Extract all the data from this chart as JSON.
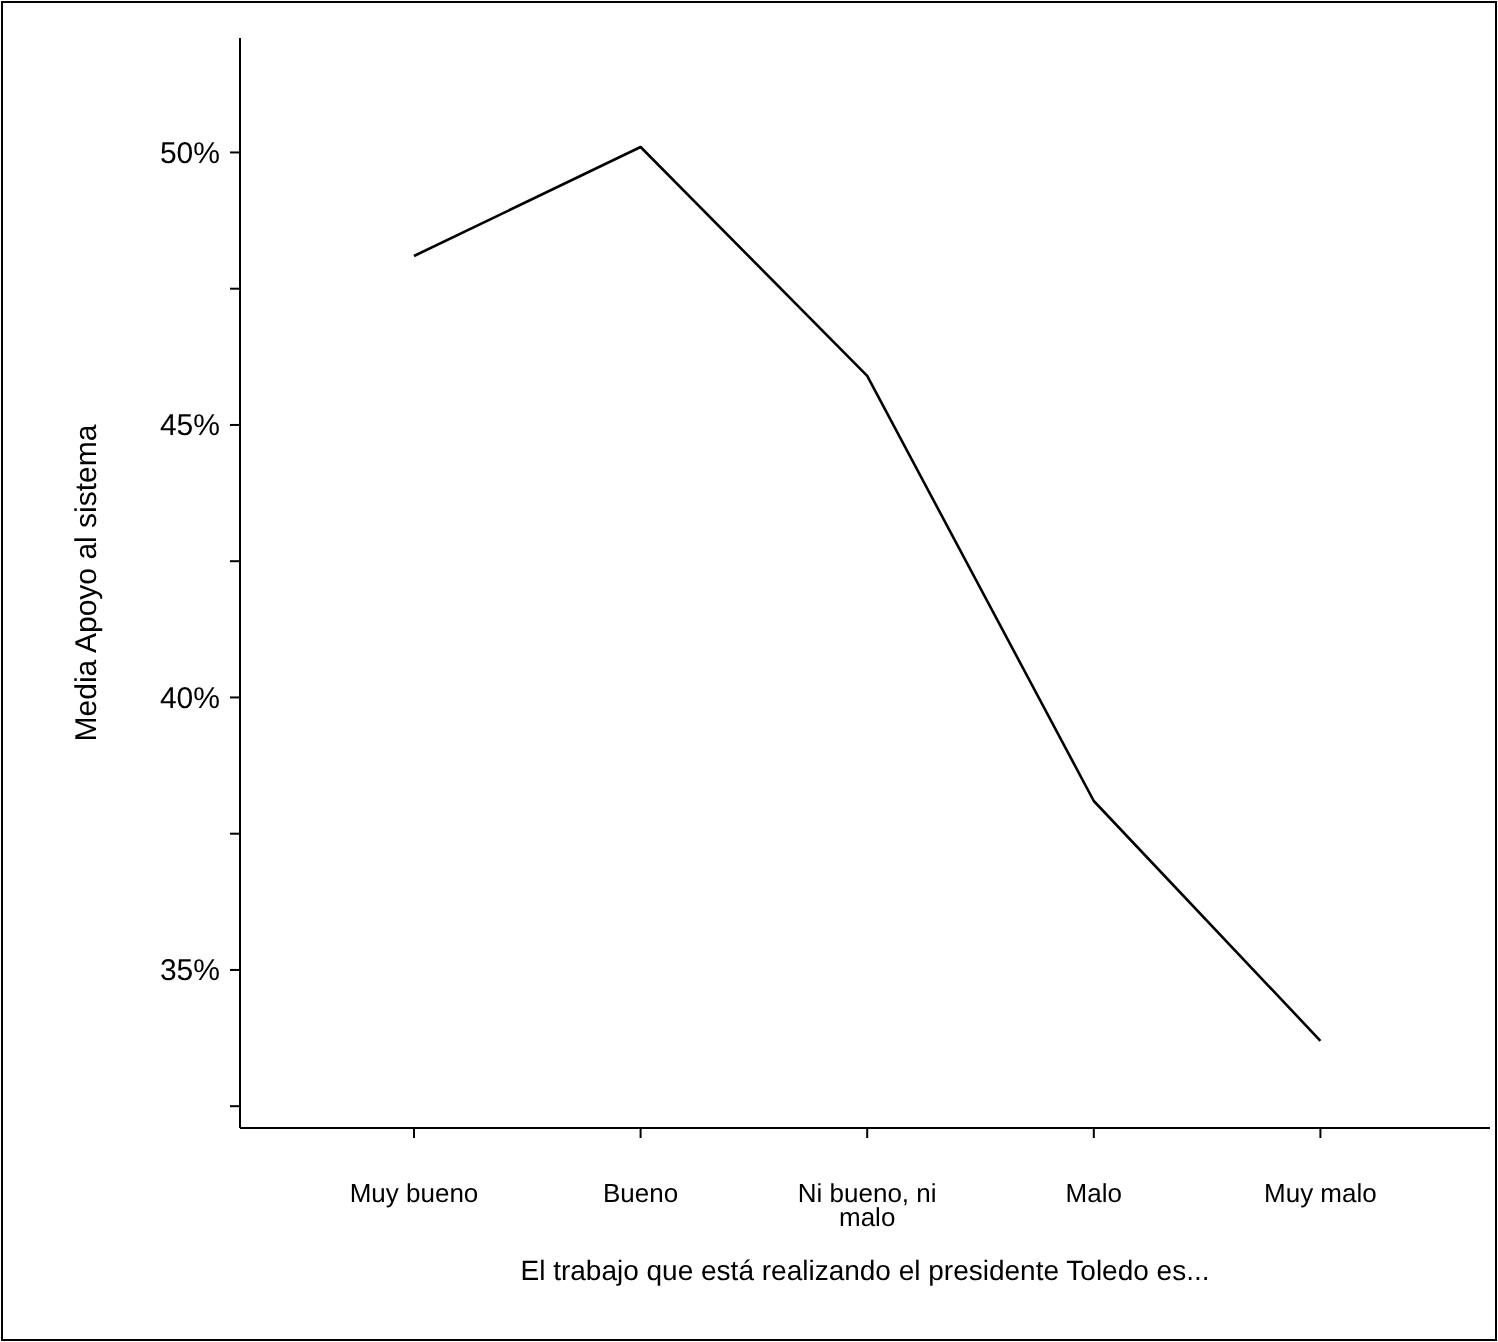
{
  "chart_data": {
    "type": "line",
    "xlabel": "El trabajo que está realizando el presidente Toledo es...",
    "ylabel": "Media Apoyo al sistema",
    "categories": [
      "Muy bueno",
      "Bueno",
      "Ni bueno, ni malo",
      "Malo",
      "Muy malo"
    ],
    "series": [
      {
        "color": "#000000",
        "values": [
          48.1,
          50.1,
          45.9,
          38.1,
          33.7
        ]
      }
    ],
    "ylim": [
      32.1,
      52.1
    ],
    "yticks": [
      {
        "value": 32.5,
        "label": null
      },
      {
        "value": 35,
        "label": "35%"
      },
      {
        "value": 37.5,
        "label": null
      },
      {
        "value": 40,
        "label": "40%"
      },
      {
        "value": 42.5,
        "label": null
      },
      {
        "value": 45,
        "label": "45%"
      },
      {
        "value": 47.5,
        "label": null
      },
      {
        "value": 50,
        "label": "50%"
      }
    ],
    "marker": "none",
    "line_style": "solid"
  }
}
